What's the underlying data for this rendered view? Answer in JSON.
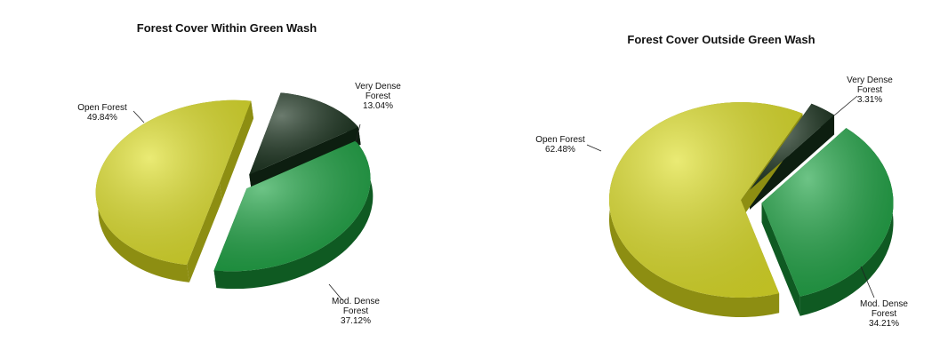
{
  "chart_data": [
    {
      "type": "pie",
      "title": "Forest Cover Within Green Wash",
      "slices": [
        {
          "name": "Very Dense Forest",
          "label_lines": [
            "Very Dense",
            "Forest"
          ],
          "value": 13.04,
          "value_text": "13.04%",
          "color": "#1c3420",
          "side_color": "#0d1e10"
        },
        {
          "name": "Mod. Dense Forest",
          "label_lines": [
            "Mod. Dense",
            "Forest"
          ],
          "value": 37.12,
          "value_text": "37.12%",
          "color": "#1fa445",
          "side_color": "#0f5a22"
        },
        {
          "name": "Open Forest",
          "label_lines": [
            "Open Forest"
          ],
          "value": 49.84,
          "value_text": "49.84%",
          "color": "#dfe02a",
          "side_color": "#8d8e12"
        }
      ]
    },
    {
      "type": "pie",
      "title": "Forest Cover Outside Green Wash",
      "slices": [
        {
          "name": "Very Dense Forest",
          "label_lines": [
            "Very Dense",
            "Forest"
          ],
          "value": 3.31,
          "value_text": "3.31%",
          "color": "#1c3420",
          "side_color": "#0d1e10"
        },
        {
          "name": "Mod. Dense Forest",
          "label_lines": [
            "Mod. Dense",
            "Forest"
          ],
          "value": 34.21,
          "value_text": "34.21%",
          "color": "#1fa445",
          "side_color": "#0f5a22"
        },
        {
          "name": "Open Forest",
          "label_lines": [
            "Open Forest"
          ],
          "value": 62.48,
          "value_text": "62.48%",
          "color": "#dfe02a",
          "side_color": "#8d8e12"
        }
      ]
    }
  ]
}
